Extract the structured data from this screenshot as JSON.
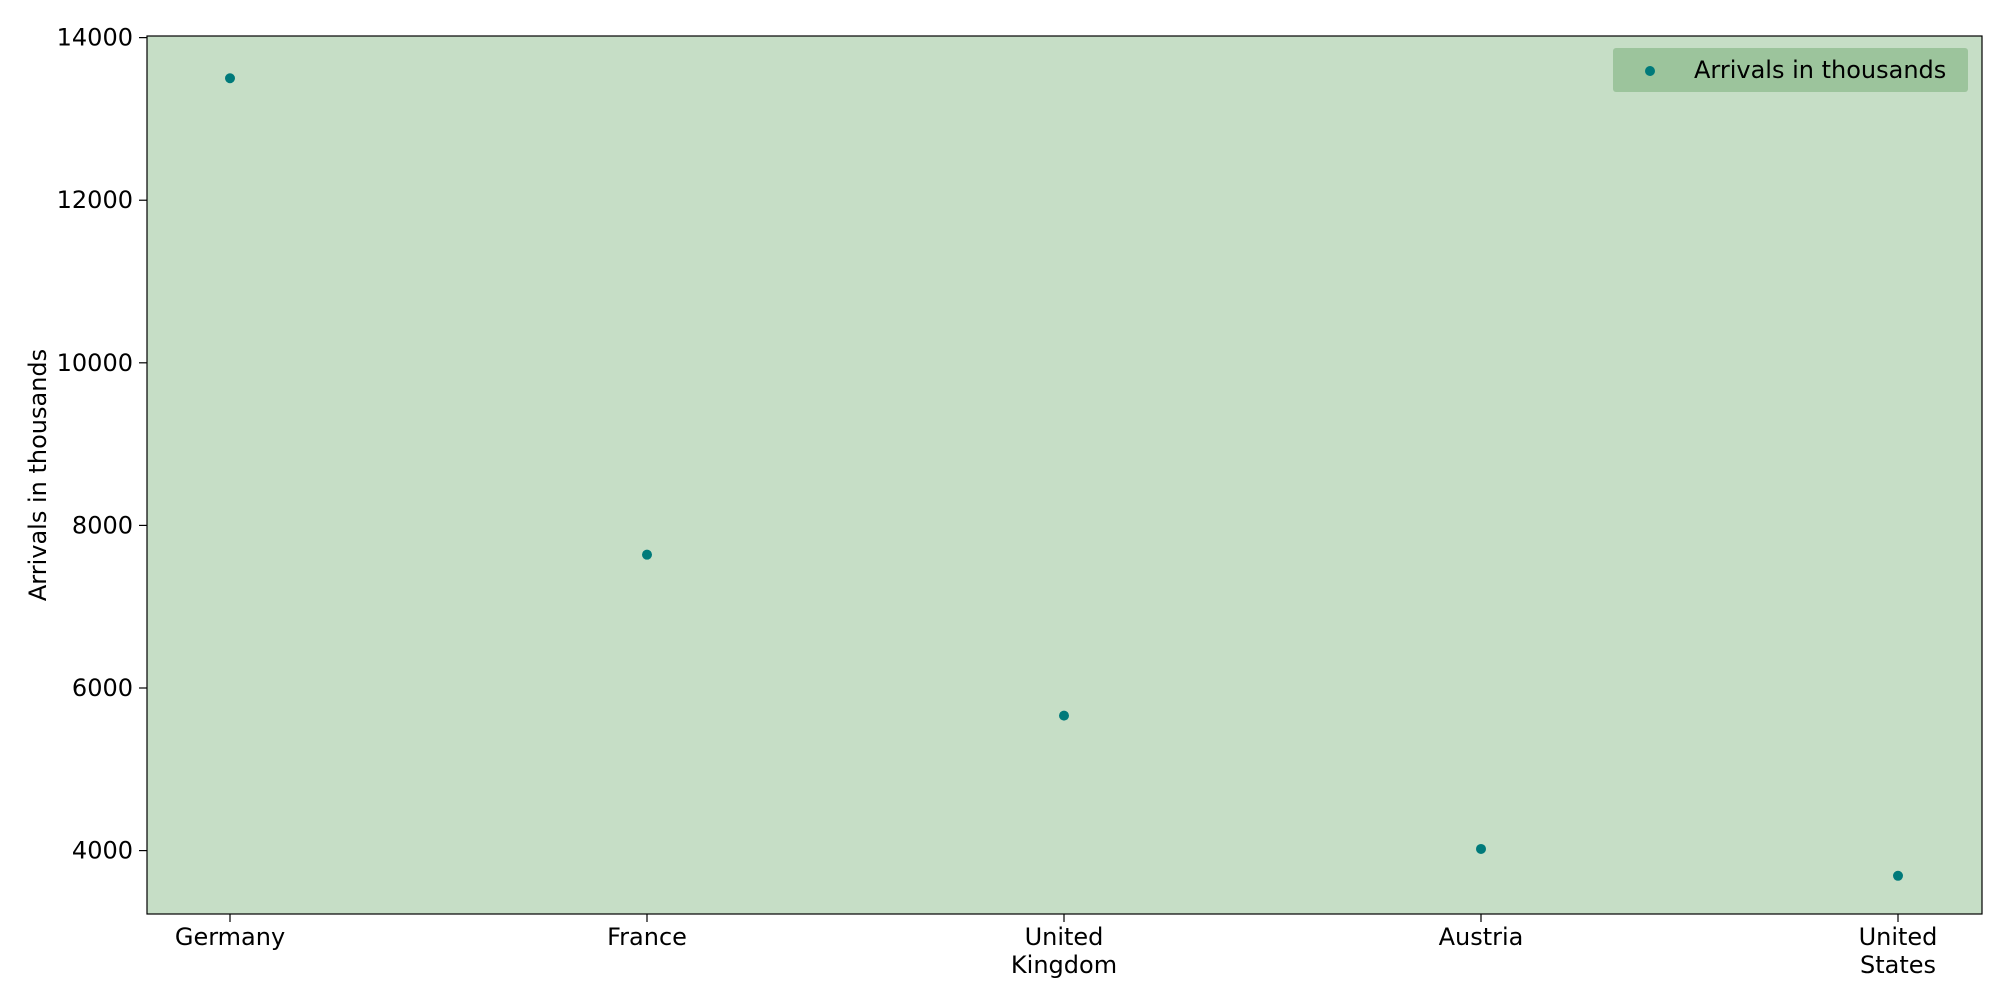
{
  "chart_data": {
    "type": "scatter",
    "categories": [
      [
        "Germany"
      ],
      [
        "France"
      ],
      [
        "United",
        "Kingdom"
      ],
      [
        "Austria"
      ],
      [
        "United",
        "States"
      ]
    ],
    "series": [
      {
        "name": "Arrivals in thousands",
        "values": [
          13500,
          7640,
          5660,
          4020,
          3690
        ],
        "color": "#007a7a"
      }
    ],
    "xlabel": "",
    "ylabel": "Arrivals in thousands",
    "ylim": [
      3220,
      14020
    ],
    "yticks": [
      4000,
      6000,
      8000,
      10000,
      12000,
      14000
    ],
    "grid": false,
    "legend_position": "top-right",
    "plot_background": "#c6dec6",
    "legend_background": "#9cc49c"
  }
}
